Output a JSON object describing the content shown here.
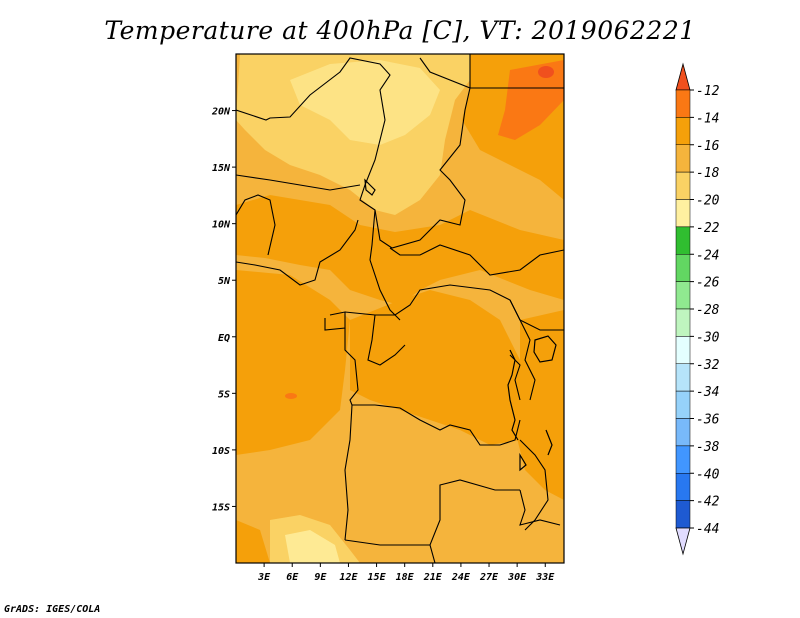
{
  "title": "Temperature at 400hPa [C], VT: 2019062221",
  "credit": "GrADS: IGES/COLA",
  "map": {
    "lon_range": [
      0,
      35
    ],
    "lat_range": [
      -20,
      25
    ],
    "lon_ticks": [
      {
        "v": 3,
        "label": "3E"
      },
      {
        "v": 6,
        "label": "6E"
      },
      {
        "v": 9,
        "label": "9E"
      },
      {
        "v": 12,
        "label": "12E"
      },
      {
        "v": 15,
        "label": "15E"
      },
      {
        "v": 18,
        "label": "18E"
      },
      {
        "v": 21,
        "label": "21E"
      },
      {
        "v": 24,
        "label": "24E"
      },
      {
        "v": 27,
        "label": "27E"
      },
      {
        "v": 30,
        "label": "30E"
      },
      {
        "v": 33,
        "label": "33E"
      }
    ],
    "lat_ticks": [
      {
        "v": 20,
        "label": "20N"
      },
      {
        "v": 15,
        "label": "15N"
      },
      {
        "v": 10,
        "label": "10N"
      },
      {
        "v": 5,
        "label": "5N"
      },
      {
        "v": 0,
        "label": "EQ"
      },
      {
        "v": -5,
        "label": "5S"
      },
      {
        "v": -10,
        "label": "10S"
      },
      {
        "v": -15,
        "label": "15S"
      }
    ],
    "background_color": "#f5b43c"
  },
  "colorbar": {
    "levels": [
      "-12",
      "-14",
      "-16",
      "-18",
      "-20",
      "-22",
      "-24",
      "-26",
      "-28",
      "-30",
      "-32",
      "-34",
      "-36",
      "-38",
      "-40",
      "-42",
      "-44"
    ],
    "colors_top_to_bottom": [
      "#f0501e",
      "#fa7814",
      "#f5a00a",
      "#f5b43c",
      "#fad264",
      "#fff0a0",
      "#30be30",
      "#62d762",
      "#90e990",
      "#bff5bf",
      "#e4ffff",
      "#b6e4fa",
      "#96d2fa",
      "#78b9fa",
      "#4196ff",
      "#2878f0",
      "#1e5ad2",
      "#1446b4",
      "#0a0a78",
      "#e1dcff"
    ]
  }
}
